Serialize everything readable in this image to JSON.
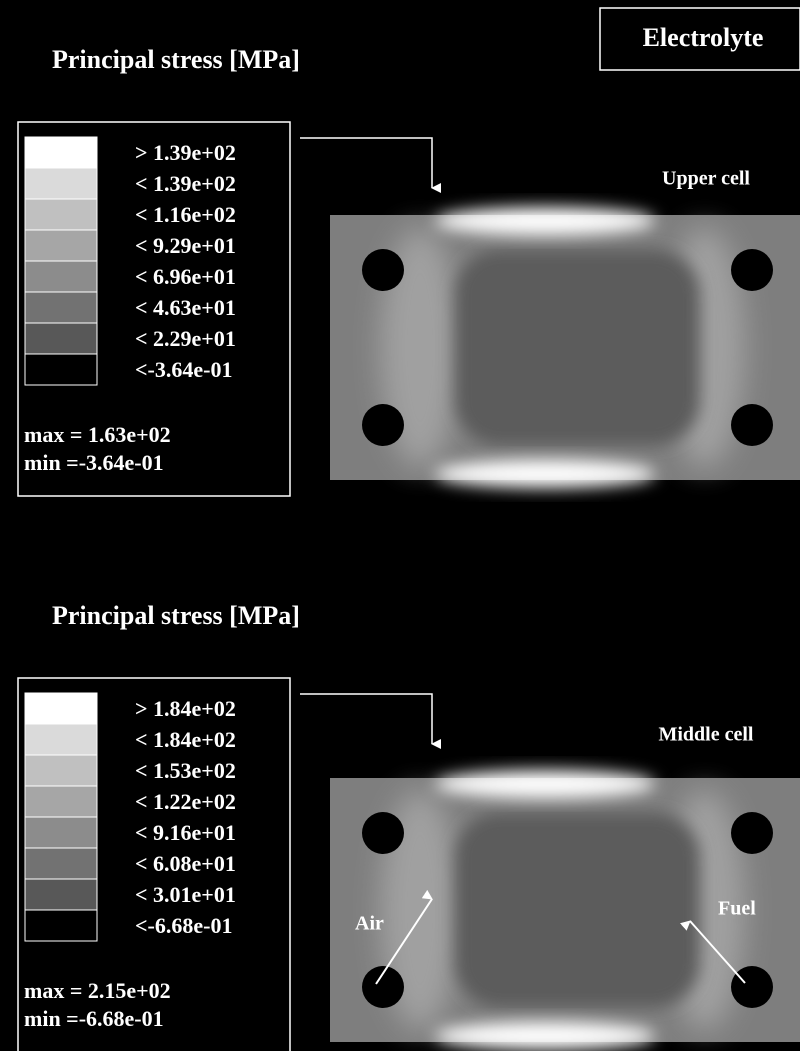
{
  "corner_label": "Electrolyte",
  "panels": [
    {
      "title": "Principal stress [MPa]",
      "legend": [
        "> 1.39e+02",
        "< 1.39e+02",
        "< 1.16e+02",
        "< 9.29e+01",
        "< 6.96e+01",
        "< 4.63e+01",
        "< 2.29e+01",
        "<-3.64e-01"
      ],
      "max": "max = 1.63e+02",
      "min": "min =-3.64e-01",
      "cell_label": "Upper cell"
    },
    {
      "title": "Principal stress [MPa]",
      "legend": [
        "> 1.84e+02",
        "< 1.84e+02",
        "< 1.53e+02",
        "< 1.22e+02",
        "< 9.16e+01",
        "< 6.08e+01",
        "< 3.01e+01",
        "<-6.68e-01"
      ],
      "max": "max = 2.15e+02",
      "min": "min =-6.68e-01",
      "cell_label": "Middle cell",
      "annotations": [
        "Air",
        "Fuel"
      ]
    }
  ]
}
